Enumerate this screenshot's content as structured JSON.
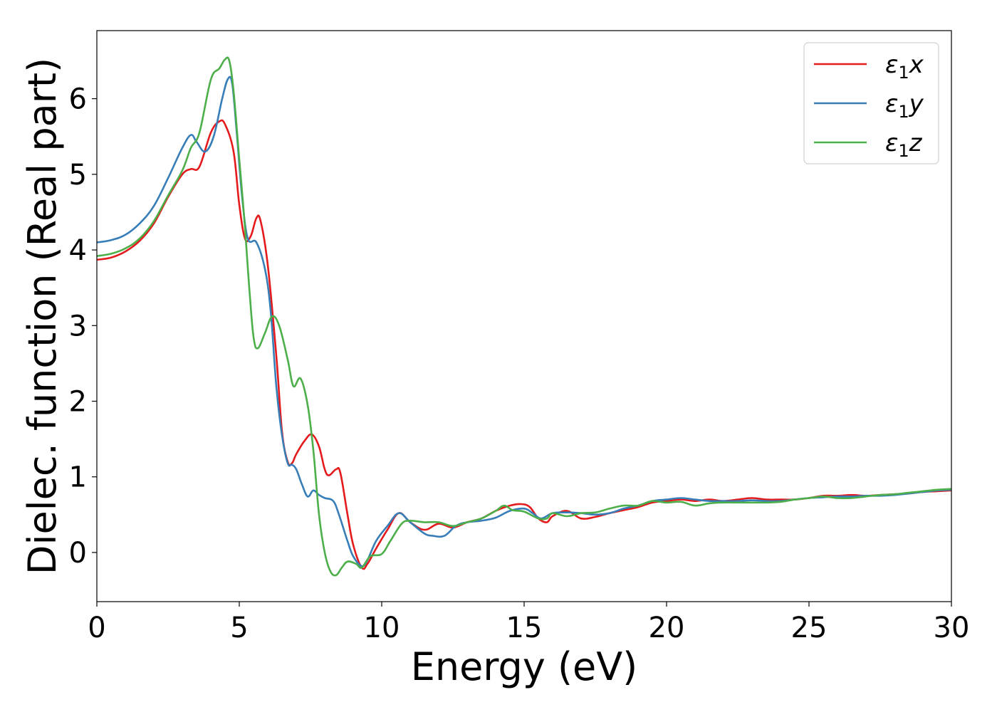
{
  "chart_data": {
    "type": "line",
    "title": "",
    "xlabel": "Energy (eV)",
    "ylabel": "Dielec. function (Real part)",
    "xlim": [
      0,
      30
    ],
    "ylim": [
      -0.65,
      6.9
    ],
    "xticks": [
      0,
      5,
      10,
      15,
      20,
      25,
      30
    ],
    "yticks": [
      0,
      1,
      2,
      3,
      4,
      5,
      6
    ],
    "grid": false,
    "legend_position": "top-right",
    "series": [
      {
        "name": "ε₁x",
        "legend_base": "ε",
        "legend_sub": "1",
        "legend_var": "x",
        "color": "#e41a1c",
        "points": [
          [
            0,
            3.87
          ],
          [
            0.5,
            3.9
          ],
          [
            1,
            3.98
          ],
          [
            1.5,
            4.12
          ],
          [
            2,
            4.35
          ],
          [
            2.5,
            4.7
          ],
          [
            3,
            5.0
          ],
          [
            3.3,
            5.07
          ],
          [
            3.6,
            5.1
          ],
          [
            4,
            5.55
          ],
          [
            4.3,
            5.7
          ],
          [
            4.5,
            5.66
          ],
          [
            4.8,
            5.3
          ],
          [
            5,
            4.6
          ],
          [
            5.2,
            4.15
          ],
          [
            5.4,
            4.18
          ],
          [
            5.6,
            4.42
          ],
          [
            5.75,
            4.38
          ],
          [
            6,
            3.8
          ],
          [
            6.3,
            2.6
          ],
          [
            6.5,
            1.6
          ],
          [
            6.7,
            1.2
          ],
          [
            6.85,
            1.18
          ],
          [
            7,
            1.3
          ],
          [
            7.3,
            1.48
          ],
          [
            7.55,
            1.56
          ],
          [
            7.8,
            1.4
          ],
          [
            8,
            1.1
          ],
          [
            8.15,
            1.02
          ],
          [
            8.4,
            1.1
          ],
          [
            8.55,
            1.05
          ],
          [
            8.8,
            0.5
          ],
          [
            9,
            0.1
          ],
          [
            9.3,
            -0.2
          ],
          [
            9.5,
            -0.15
          ],
          [
            9.8,
            0.05
          ],
          [
            10.2,
            0.3
          ],
          [
            10.6,
            0.52
          ],
          [
            11,
            0.4
          ],
          [
            11.5,
            0.3
          ],
          [
            12,
            0.38
          ],
          [
            12.5,
            0.33
          ],
          [
            13,
            0.4
          ],
          [
            13.5,
            0.45
          ],
          [
            14,
            0.55
          ],
          [
            14.5,
            0.62
          ],
          [
            14.9,
            0.64
          ],
          [
            15.2,
            0.6
          ],
          [
            15.5,
            0.45
          ],
          [
            15.8,
            0.4
          ],
          [
            16,
            0.48
          ],
          [
            16.5,
            0.55
          ],
          [
            17,
            0.45
          ],
          [
            17.5,
            0.47
          ],
          [
            18,
            0.52
          ],
          [
            18.5,
            0.56
          ],
          [
            19,
            0.6
          ],
          [
            19.5,
            0.66
          ],
          [
            20,
            0.68
          ],
          [
            20.5,
            0.7
          ],
          [
            21,
            0.68
          ],
          [
            21.5,
            0.7
          ],
          [
            22,
            0.68
          ],
          [
            22.5,
            0.7
          ],
          [
            23,
            0.72
          ],
          [
            23.5,
            0.7
          ],
          [
            24,
            0.7
          ],
          [
            24.5,
            0.7
          ],
          [
            25,
            0.72
          ],
          [
            25.5,
            0.75
          ],
          [
            26,
            0.75
          ],
          [
            26.5,
            0.76
          ],
          [
            27,
            0.75
          ],
          [
            27.5,
            0.76
          ],
          [
            28,
            0.77
          ],
          [
            28.5,
            0.78
          ],
          [
            29,
            0.8
          ],
          [
            29.5,
            0.81
          ],
          [
            30,
            0.82
          ]
        ]
      },
      {
        "name": "ε₁y",
        "legend_base": "ε",
        "legend_sub": "1",
        "legend_var": "y",
        "color": "#377eb8",
        "points": [
          [
            0,
            4.1
          ],
          [
            0.5,
            4.13
          ],
          [
            1,
            4.2
          ],
          [
            1.5,
            4.35
          ],
          [
            2,
            4.58
          ],
          [
            2.5,
            4.95
          ],
          [
            3,
            5.35
          ],
          [
            3.3,
            5.52
          ],
          [
            3.5,
            5.43
          ],
          [
            3.8,
            5.3
          ],
          [
            4.1,
            5.5
          ],
          [
            4.4,
            6.0
          ],
          [
            4.6,
            6.26
          ],
          [
            4.75,
            6.2
          ],
          [
            4.9,
            5.6
          ],
          [
            5.1,
            4.7
          ],
          [
            5.3,
            4.15
          ],
          [
            5.6,
            4.1
          ],
          [
            5.9,
            3.75
          ],
          [
            6.1,
            3.2
          ],
          [
            6.3,
            2.2
          ],
          [
            6.5,
            1.55
          ],
          [
            6.7,
            1.18
          ],
          [
            6.85,
            1.16
          ],
          [
            7,
            1.1
          ],
          [
            7.2,
            0.9
          ],
          [
            7.4,
            0.74
          ],
          [
            7.6,
            0.82
          ],
          [
            7.8,
            0.76
          ],
          [
            8,
            0.72
          ],
          [
            8.3,
            0.68
          ],
          [
            8.5,
            0.5
          ],
          [
            8.8,
            0.15
          ],
          [
            9,
            -0.05
          ],
          [
            9.3,
            -0.18
          ],
          [
            9.5,
            -0.1
          ],
          [
            9.8,
            0.15
          ],
          [
            10.2,
            0.35
          ],
          [
            10.6,
            0.52
          ],
          [
            11,
            0.4
          ],
          [
            11.5,
            0.25
          ],
          [
            11.8,
            0.22
          ],
          [
            12.2,
            0.22
          ],
          [
            12.6,
            0.35
          ],
          [
            13,
            0.4
          ],
          [
            13.5,
            0.42
          ],
          [
            14,
            0.46
          ],
          [
            14.5,
            0.55
          ],
          [
            15,
            0.58
          ],
          [
            15.3,
            0.52
          ],
          [
            15.6,
            0.45
          ],
          [
            16,
            0.52
          ],
          [
            16.5,
            0.53
          ],
          [
            17,
            0.52
          ],
          [
            17.5,
            0.5
          ],
          [
            18,
            0.52
          ],
          [
            18.5,
            0.58
          ],
          [
            19,
            0.62
          ],
          [
            19.5,
            0.68
          ],
          [
            20,
            0.7
          ],
          [
            20.5,
            0.72
          ],
          [
            21,
            0.7
          ],
          [
            21.5,
            0.68
          ],
          [
            22,
            0.68
          ],
          [
            22.5,
            0.68
          ],
          [
            23,
            0.69
          ],
          [
            23.5,
            0.68
          ],
          [
            24,
            0.68
          ],
          [
            24.5,
            0.7
          ],
          [
            25,
            0.72
          ],
          [
            25.5,
            0.73
          ],
          [
            26,
            0.74
          ],
          [
            26.5,
            0.74
          ],
          [
            27,
            0.75
          ],
          [
            27.5,
            0.75
          ],
          [
            28,
            0.76
          ],
          [
            28.5,
            0.78
          ],
          [
            29,
            0.8
          ],
          [
            29.5,
            0.82
          ],
          [
            30,
            0.83
          ]
        ]
      },
      {
        "name": "ε₁z",
        "legend_base": "ε",
        "legend_sub": "1",
        "legend_var": "z",
        "color": "#4daf4a",
        "points": [
          [
            0,
            3.92
          ],
          [
            0.5,
            3.95
          ],
          [
            1,
            4.02
          ],
          [
            1.5,
            4.15
          ],
          [
            2,
            4.38
          ],
          [
            2.5,
            4.72
          ],
          [
            3,
            5.05
          ],
          [
            3.3,
            5.35
          ],
          [
            3.6,
            5.55
          ],
          [
            4,
            6.25
          ],
          [
            4.3,
            6.4
          ],
          [
            4.5,
            6.52
          ],
          [
            4.65,
            6.5
          ],
          [
            4.8,
            6.1
          ],
          [
            5,
            5.2
          ],
          [
            5.2,
            4.3
          ],
          [
            5.35,
            3.5
          ],
          [
            5.5,
            2.85
          ],
          [
            5.65,
            2.7
          ],
          [
            5.9,
            2.9
          ],
          [
            6.15,
            3.12
          ],
          [
            6.4,
            3.0
          ],
          [
            6.7,
            2.55
          ],
          [
            6.9,
            2.2
          ],
          [
            7.15,
            2.3
          ],
          [
            7.4,
            1.95
          ],
          [
            7.6,
            1.35
          ],
          [
            7.8,
            0.5
          ],
          [
            8,
            0.0
          ],
          [
            8.2,
            -0.25
          ],
          [
            8.4,
            -0.3
          ],
          [
            8.6,
            -0.2
          ],
          [
            8.8,
            -0.12
          ],
          [
            9.1,
            -0.15
          ],
          [
            9.3,
            -0.2
          ],
          [
            9.6,
            -0.05
          ],
          [
            10,
            -0.02
          ],
          [
            10.3,
            0.15
          ],
          [
            10.7,
            0.38
          ],
          [
            11,
            0.42
          ],
          [
            11.5,
            0.4
          ],
          [
            12,
            0.4
          ],
          [
            12.5,
            0.35
          ],
          [
            13,
            0.4
          ],
          [
            13.5,
            0.45
          ],
          [
            14,
            0.55
          ],
          [
            14.3,
            0.62
          ],
          [
            14.6,
            0.56
          ],
          [
            15,
            0.54
          ],
          [
            15.5,
            0.45
          ],
          [
            15.8,
            0.45
          ],
          [
            16,
            0.52
          ],
          [
            16.5,
            0.48
          ],
          [
            17,
            0.52
          ],
          [
            17.5,
            0.53
          ],
          [
            18,
            0.58
          ],
          [
            18.5,
            0.62
          ],
          [
            19,
            0.62
          ],
          [
            19.5,
            0.68
          ],
          [
            20,
            0.66
          ],
          [
            20.5,
            0.67
          ],
          [
            21,
            0.62
          ],
          [
            21.5,
            0.65
          ],
          [
            22,
            0.66
          ],
          [
            22.5,
            0.66
          ],
          [
            23,
            0.66
          ],
          [
            23.5,
            0.66
          ],
          [
            24,
            0.67
          ],
          [
            24.5,
            0.7
          ],
          [
            25,
            0.72
          ],
          [
            25.5,
            0.74
          ],
          [
            26,
            0.72
          ],
          [
            26.5,
            0.72
          ],
          [
            27,
            0.74
          ],
          [
            27.5,
            0.76
          ],
          [
            28,
            0.77
          ],
          [
            28.5,
            0.79
          ],
          [
            29,
            0.81
          ],
          [
            29.5,
            0.83
          ],
          [
            30,
            0.84
          ]
        ]
      }
    ]
  }
}
